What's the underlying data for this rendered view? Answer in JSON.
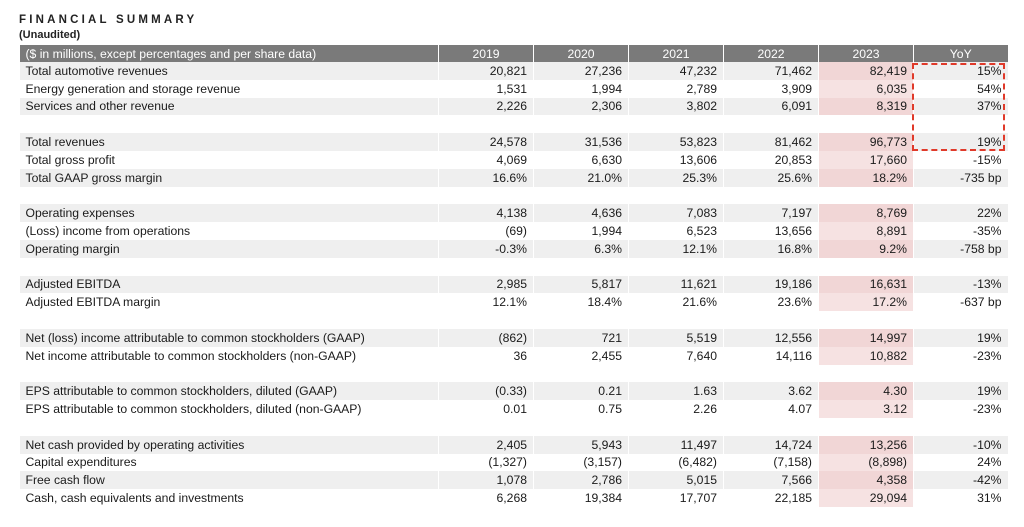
{
  "title": "FINANCIAL SUMMARY",
  "subtitle": "(Unaudited)",
  "header": {
    "label": "($ in millions, except percentages and per share data)",
    "years": [
      "2019",
      "2020",
      "2021",
      "2022",
      "2023"
    ],
    "yoy": "YoY"
  },
  "rows": [
    {
      "label": "Total automotive revenues",
      "values": [
        "20,821",
        "27,236",
        "47,232",
        "71,462",
        "82,419"
      ],
      "yoy": "15%"
    },
    {
      "label": "Energy generation and storage revenue",
      "values": [
        "1,531",
        "1,994",
        "2,789",
        "3,909",
        "6,035"
      ],
      "yoy": "54%"
    },
    {
      "label": "Services and other revenue",
      "values": [
        "2,226",
        "2,306",
        "3,802",
        "6,091",
        "8,319"
      ],
      "yoy": "37%"
    },
    {
      "spacer": true
    },
    {
      "label": "Total revenues",
      "values": [
        "24,578",
        "31,536",
        "53,823",
        "81,462",
        "96,773"
      ],
      "yoy": "19%"
    },
    {
      "label": "Total gross profit",
      "values": [
        "4,069",
        "6,630",
        "13,606",
        "20,853",
        "17,660"
      ],
      "yoy": "-15%"
    },
    {
      "label": "Total GAAP gross margin",
      "values": [
        "16.6%",
        "21.0%",
        "25.3%",
        "25.6%",
        "18.2%"
      ],
      "yoy": "-735 bp"
    },
    {
      "spacer": true
    },
    {
      "label": "Operating expenses",
      "values": [
        "4,138",
        "4,636",
        "7,083",
        "7,197",
        "8,769"
      ],
      "yoy": "22%"
    },
    {
      "label": "(Loss) income from operations",
      "values": [
        "(69)",
        "1,994",
        "6,523",
        "13,656",
        "8,891"
      ],
      "yoy": "-35%"
    },
    {
      "label": "Operating margin",
      "values": [
        "-0.3%",
        "6.3%",
        "12.1%",
        "16.8%",
        "9.2%"
      ],
      "yoy": "-758 bp"
    },
    {
      "spacer": true
    },
    {
      "label": "Adjusted EBITDA",
      "values": [
        "2,985",
        "5,817",
        "11,621",
        "19,186",
        "16,631"
      ],
      "yoy": "-13%"
    },
    {
      "label": "Adjusted EBITDA margin",
      "values": [
        "12.1%",
        "18.4%",
        "21.6%",
        "23.6%",
        "17.2%"
      ],
      "yoy": "-637 bp"
    },
    {
      "spacer": true
    },
    {
      "label": "Net (loss) income attributable to common stockholders (GAAP)",
      "values": [
        "(862)",
        "721",
        "5,519",
        "12,556",
        "14,997"
      ],
      "yoy": "19%"
    },
    {
      "label": "Net income attributable to common stockholders (non-GAAP)",
      "values": [
        "36",
        "2,455",
        "7,640",
        "14,116",
        "10,882"
      ],
      "yoy": "-23%"
    },
    {
      "spacer": true
    },
    {
      "label": "EPS attributable to common stockholders, diluted (GAAP)",
      "values": [
        "(0.33)",
        "0.21",
        "1.63",
        "3.62",
        "4.30"
      ],
      "yoy": "19%"
    },
    {
      "label": "EPS attributable to common stockholders, diluted (non-GAAP)",
      "values": [
        "0.01",
        "0.75",
        "2.26",
        "4.07",
        "3.12"
      ],
      "yoy": "-23%"
    },
    {
      "spacer": true
    },
    {
      "label": "Net cash provided by operating activities",
      "values": [
        "2,405",
        "5,943",
        "11,497",
        "14,724",
        "13,256"
      ],
      "yoy": "-10%"
    },
    {
      "label": "Capital expenditures",
      "values": [
        "(1,327)",
        "(3,157)",
        "(6,482)",
        "(7,158)",
        "(8,898)"
      ],
      "yoy": "24%"
    },
    {
      "label": "Free cash flow",
      "values": [
        "1,078",
        "2,786",
        "5,015",
        "7,566",
        "4,358"
      ],
      "yoy": "-42%"
    },
    {
      "label": "Cash, cash equivalents and investments",
      "values": [
        "6,268",
        "19,384",
        "17,707",
        "22,185",
        "29,094"
      ],
      "yoy": "31%"
    }
  ],
  "colors": {
    "header_bg": "#7a7a7a",
    "row_shade": "#efefef",
    "highlight_2023": "#f6e2e2",
    "annotation_box": "#e03a2a"
  }
}
